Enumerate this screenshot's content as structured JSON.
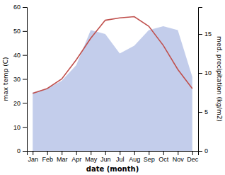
{
  "chart_data": {
    "type": "line",
    "categories": [
      "Jan",
      "Feb",
      "Mar",
      "Apr",
      "May",
      "Jun",
      "Jul",
      "Aug",
      "Sep",
      "Oct",
      "Nov",
      "Dec"
    ],
    "xlabel": "date (month)",
    "ylabel": "max temp (C)",
    "y2label": "med. precipitation (kg/m2)",
    "series": [
      {
        "type": "area",
        "axis": "y2",
        "color": "#b8c4e8",
        "values": [
          7.5,
          8.0,
          9.0,
          11.0,
          15.5,
          15.0,
          12.5,
          13.5,
          15.5,
          16.0,
          15.5,
          9.5
        ]
      },
      {
        "type": "line",
        "color": "#c0504d",
        "values": [
          24.0,
          26.0,
          30.0,
          38.0,
          47.0,
          54.5,
          55.5,
          56.0,
          52.0,
          44.0,
          34.0,
          26.0
        ]
      }
    ],
    "ylim": [
      0,
      60
    ],
    "yticks": [
      0,
      10,
      20,
      30,
      40,
      50,
      60
    ],
    "y2lim": [
      0,
      18.46
    ],
    "y2ticks": [
      0,
      5,
      10,
      15
    ]
  }
}
